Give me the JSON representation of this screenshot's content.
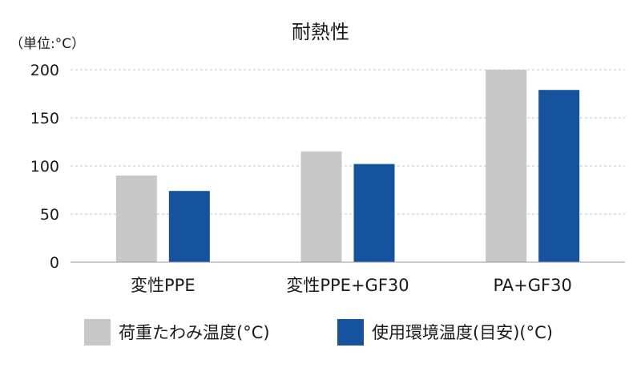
{
  "chart_data": {
    "type": "bar",
    "title": "耐熱性",
    "unit_label": "（単位:°C）",
    "categories": [
      "変性PPE",
      "変性PPE+GF30",
      "PA+GF30"
    ],
    "series": [
      {
        "name": "荷重たわみ温度(°C)",
        "values": [
          90,
          115,
          200
        ],
        "color": "#c8c8c8"
      },
      {
        "name": "使用環境温度(目安)(°C)",
        "values": [
          74,
          102,
          179
        ],
        "color": "#15539f"
      }
    ],
    "ylim": [
      0,
      200
    ],
    "yticks": [
      "0",
      "50",
      "100",
      "150",
      "200"
    ],
    "grid": true,
    "legend_position": "bottom"
  }
}
